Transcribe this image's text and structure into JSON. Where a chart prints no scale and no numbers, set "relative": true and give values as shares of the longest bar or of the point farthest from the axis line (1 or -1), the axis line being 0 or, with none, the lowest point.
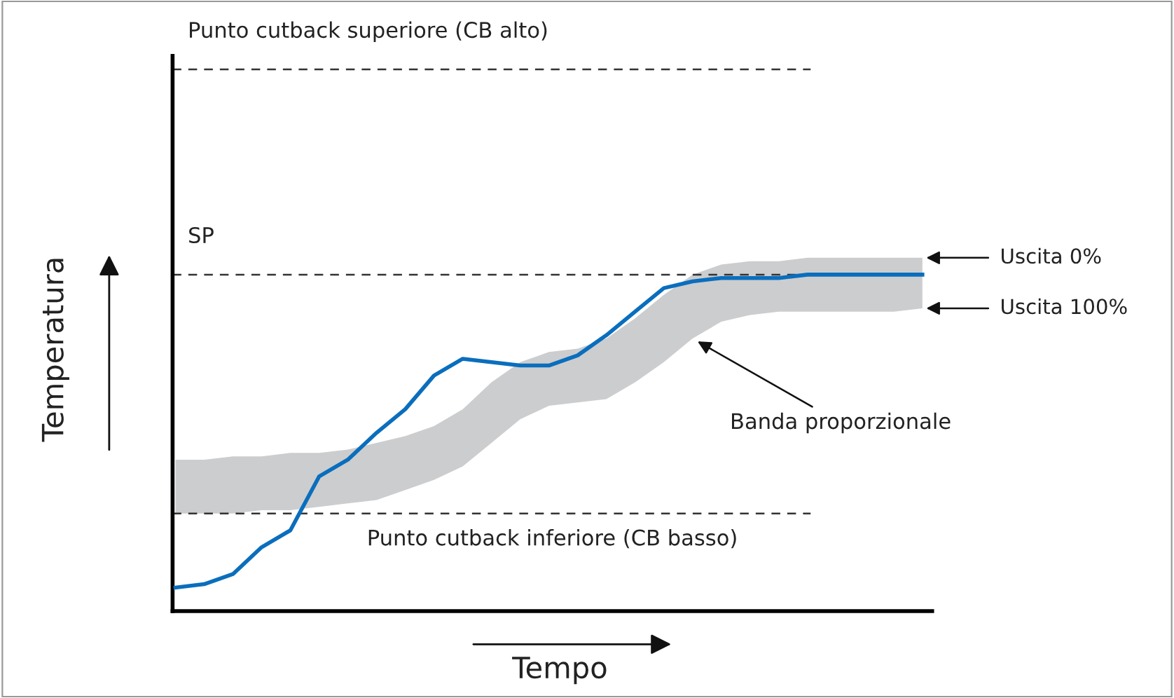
{
  "chart_data": {
    "type": "line",
    "relative": true,
    "xlabel": "Tempo",
    "ylabel": "Temperatura",
    "legend": false,
    "grid": false,
    "line_style": "solid",
    "marker": "none",
    "categories": [
      null,
      null,
      null,
      null,
      null,
      null,
      null,
      null,
      null,
      null,
      null,
      null,
      null,
      null,
      null,
      null,
      null,
      null,
      null,
      null,
      null,
      null,
      null,
      null,
      null,
      null,
      null
    ],
    "series": [
      {
        "color": "#0a6ebd",
        "values": [
          0.07,
          0.08,
          0.11,
          0.19,
          0.24,
          0.4,
          0.45,
          0.53,
          0.6,
          0.7,
          0.75,
          0.74,
          0.73,
          0.73,
          0.76,
          0.82,
          0.89,
          0.96,
          0.98,
          0.99,
          0.99,
          0.99,
          1.0,
          1.0,
          1.0,
          1.0,
          1.0
        ],
        "lower": [
          0.29,
          0.29,
          0.29,
          0.3,
          0.3,
          0.31,
          0.32,
          0.33,
          0.36,
          0.39,
          0.43,
          0.5,
          0.57,
          0.61,
          0.62,
          0.63,
          0.68,
          0.74,
          0.81,
          0.86,
          0.88,
          0.89,
          0.89,
          0.89,
          0.89,
          0.89,
          0.9
        ],
        "upper": [
          0.45,
          0.45,
          0.46,
          0.46,
          0.47,
          0.47,
          0.48,
          0.5,
          0.52,
          0.55,
          0.6,
          0.68,
          0.74,
          0.77,
          0.78,
          0.81,
          0.87,
          0.94,
          1.0,
          1.03,
          1.04,
          1.04,
          1.05,
          1.05,
          1.05,
          1.05,
          1.05
        ]
      }
    ],
    "ref_lines": [
      {
        "axis": "y",
        "value": 1.61,
        "label": "Punto cutback superiore (CB alto)",
        "color": "#333333",
        "line_style": "dashed"
      },
      {
        "axis": "y",
        "value": 1.0,
        "label": "SP",
        "color": "#333333",
        "line_style": "dashed"
      },
      {
        "axis": "y",
        "value": 0.29,
        "label": "Punto cutback inferiore (CB basso)",
        "color": "#333333",
        "line_style": "dashed"
      }
    ],
    "annotations": [
      "Uscita 0%",
      "Uscita 100%",
      "Banda proporzionale"
    ]
  }
}
